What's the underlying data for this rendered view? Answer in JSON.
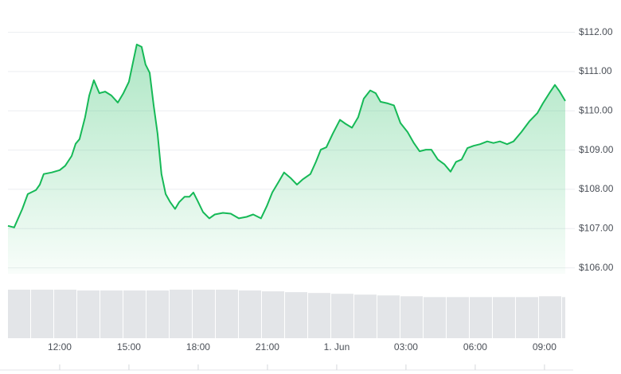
{
  "chart_data": {
    "type": "area",
    "color": "#16b957",
    "grid": true,
    "x": [
      9.76,
      10.03,
      10.38,
      10.62,
      10.97,
      11.14,
      11.31,
      11.66,
      12.0,
      12.24,
      12.52,
      12.69,
      12.86,
      13.1,
      13.28,
      13.48,
      13.72,
      13.97,
      14.24,
      14.52,
      14.76,
      15.0,
      15.17,
      15.34,
      15.55,
      15.72,
      15.9,
      16.07,
      16.24,
      16.41,
      16.59,
      16.79,
      17.0,
      17.17,
      17.41,
      17.62,
      17.79,
      17.97,
      18.21,
      18.48,
      18.72,
      19.07,
      19.41,
      19.76,
      20.1,
      20.38,
      20.72,
      20.97,
      21.21,
      21.48,
      21.72,
      22.0,
      22.28,
      22.52,
      22.86,
      23.1,
      23.31,
      23.55,
      23.83,
      24.14,
      24.38,
      24.66,
      24.93,
      25.17,
      25.45,
      25.69,
      25.9,
      26.21,
      26.48,
      26.76,
      27.07,
      27.34,
      27.59,
      27.86,
      28.1,
      28.38,
      28.66,
      28.93,
      29.17,
      29.41,
      29.66,
      29.93,
      30.21,
      30.52,
      30.79,
      31.07,
      31.38,
      31.66,
      32.0,
      32.34,
      32.69,
      32.93,
      33.21,
      33.45,
      33.66,
      33.9
    ],
    "values": [
      107.07,
      107.03,
      107.5,
      107.88,
      107.98,
      108.12,
      108.39,
      108.43,
      108.49,
      108.6,
      108.85,
      109.16,
      109.28,
      109.84,
      110.39,
      110.78,
      110.45,
      110.49,
      110.39,
      110.21,
      110.45,
      110.74,
      111.22,
      111.69,
      111.63,
      111.18,
      110.97,
      110.14,
      109.42,
      108.39,
      107.88,
      107.67,
      107.5,
      107.67,
      107.81,
      107.81,
      107.92,
      107.71,
      107.42,
      107.26,
      107.36,
      107.4,
      107.38,
      107.26,
      107.3,
      107.36,
      107.26,
      107.57,
      107.92,
      108.19,
      108.43,
      108.29,
      108.12,
      108.25,
      108.39,
      108.7,
      109.01,
      109.07,
      109.42,
      109.77,
      109.67,
      109.57,
      109.84,
      110.31,
      110.52,
      110.45,
      110.23,
      110.19,
      110.14,
      109.69,
      109.46,
      109.18,
      108.97,
      109.01,
      109.01,
      108.76,
      108.64,
      108.45,
      108.7,
      108.76,
      109.05,
      109.11,
      109.15,
      109.22,
      109.18,
      109.22,
      109.15,
      109.22,
      109.46,
      109.73,
      109.94,
      110.19,
      110.45,
      110.66,
      110.49,
      110.25
    ],
    "xlim": [
      9.76,
      33.9
    ],
    "xticks": [
      {
        "value": 12,
        "label": "12:00"
      },
      {
        "value": 15,
        "label": "15:00"
      },
      {
        "value": 18,
        "label": "18:00"
      },
      {
        "value": 21,
        "label": "21:00"
      },
      {
        "value": 24,
        "label": "1. Jun"
      },
      {
        "value": 27,
        "label": "03:00"
      },
      {
        "value": 30,
        "label": "06:00"
      },
      {
        "value": 33,
        "label": "09:00"
      }
    ],
    "ylim": [
      105.85,
      112.6
    ],
    "yticks": [
      {
        "value": 106,
        "label": "$106.00"
      },
      {
        "value": 107,
        "label": "$107.00"
      },
      {
        "value": 108,
        "label": "$108.00"
      },
      {
        "value": 109,
        "label": "$109.00"
      },
      {
        "value": 110,
        "label": "$110.00"
      },
      {
        "value": 111,
        "label": "$111.00"
      },
      {
        "value": 112,
        "label": "$112.00"
      }
    ],
    "volume": {
      "color": "#e3e5e8",
      "ylim": [
        0,
        60
      ],
      "x": [
        9.76,
        10.76,
        11.76,
        12.76,
        13.76,
        14.76,
        15.76,
        16.76,
        17.76,
        18.76,
        19.76,
        20.76,
        21.76,
        22.76,
        23.76,
        24.76,
        25.76,
        26.76,
        27.76,
        28.76,
        29.76,
        30.76,
        31.76,
        32.76,
        33.76
      ],
      "values": [
        59,
        59,
        59,
        58,
        58,
        58,
        58,
        59,
        59,
        59,
        58,
        57,
        56,
        55,
        54,
        53,
        52,
        51,
        50,
        50,
        50,
        50,
        50,
        51,
        50
      ]
    }
  }
}
